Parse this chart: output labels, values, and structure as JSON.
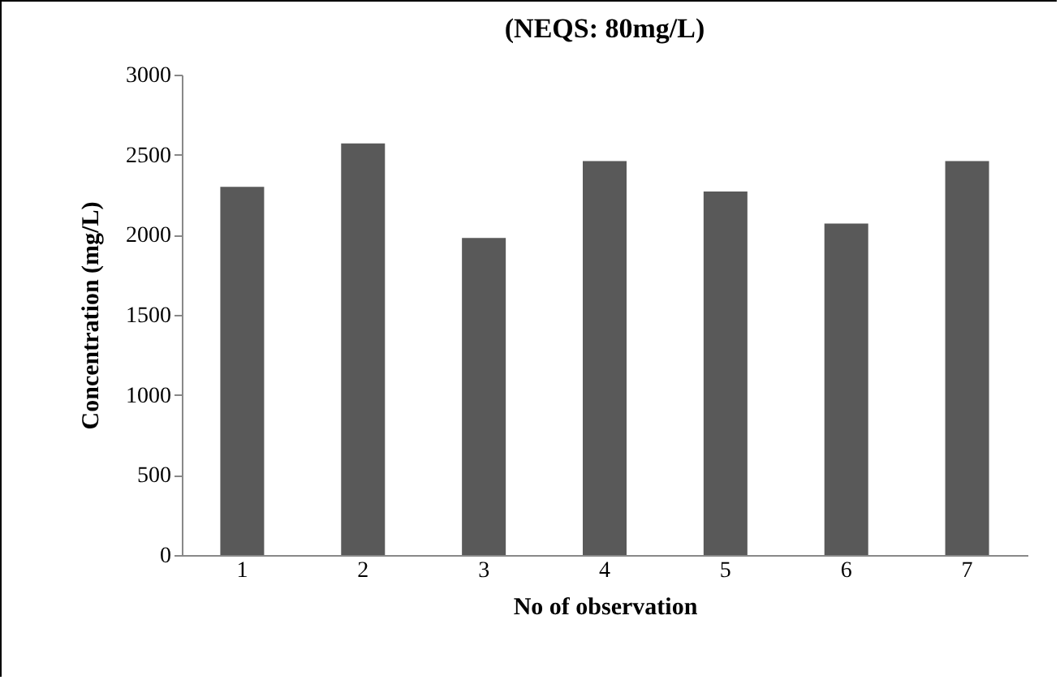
{
  "chart_data": {
    "type": "bar",
    "title": "(NEQS: 80mg/L)",
    "xlabel": "No of observation",
    "ylabel": "Concentration (mg/L)",
    "categories": [
      "1",
      "2",
      "3",
      "4",
      "5",
      "6",
      "7"
    ],
    "values": [
      2300,
      2570,
      1980,
      2460,
      2270,
      2070,
      2460
    ],
    "color": "#595959",
    "ylim": [
      0,
      3000
    ],
    "yticks": [
      0,
      500,
      1000,
      1500,
      2000,
      2500,
      3000
    ],
    "grid": false
  }
}
